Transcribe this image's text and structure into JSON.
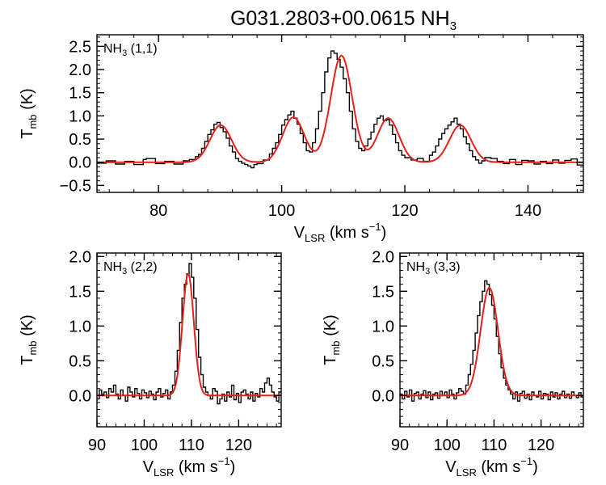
{
  "figure": {
    "title_main": "G031.2803+00.0615 NH",
    "title_sub": "3"
  },
  "chart_data": [
    {
      "type": "line",
      "panel": "NH3 (1,1)",
      "label_main": "NH",
      "label_sub": "3",
      "label_rest": " (1,1)",
      "xlabel_main": "V",
      "xlabel_sub": "LSR",
      "xlabel_rest": " (km s",
      "xlabel_sup": "−1",
      "xlabel_end": ")",
      "ylabel_main": "T",
      "ylabel_sub": "mb",
      "ylabel_rest": " (K)",
      "xlim": [
        70,
        149
      ],
      "ylim": [
        -0.65,
        2.75
      ],
      "xticks": [
        80,
        100,
        120,
        140
      ],
      "xtick_labels": [
        "80",
        "100",
        "120",
        "140"
      ],
      "yticks": [
        -0.5,
        0.0,
        0.5,
        1.0,
        1.5,
        2.0,
        2.5
      ],
      "ytick_labels": [
        "−0.5",
        "0.0",
        "0.5",
        "1.0",
        "1.5",
        "2.0",
        "2.5"
      ],
      "series": [
        {
          "name": "observed",
          "style": "step",
          "color": "#000000",
          "x": [
            70.0,
            71.5,
            73.0,
            74.5,
            76.0,
            77.5,
            78.0,
            79.5,
            81.0,
            82.5,
            84.0,
            85.0,
            86.0,
            86.5,
            87.0,
            87.5,
            88.0,
            88.5,
            89.0,
            89.5,
            90.0,
            90.5,
            91.0,
            91.5,
            92.0,
            92.5,
            93.0,
            93.5,
            94.0,
            94.5,
            95.0,
            95.5,
            96.0,
            97.0,
            98.0,
            98.5,
            99.0,
            99.5,
            100.0,
            100.5,
            101.0,
            101.5,
            102.0,
            102.5,
            103.0,
            103.5,
            104.0,
            104.5,
            105.0,
            105.5,
            106.0,
            106.5,
            107.0,
            107.5,
            108.0,
            108.5,
            109.0,
            109.5,
            110.0,
            110.5,
            111.0,
            111.5,
            112.0,
            112.5,
            113.0,
            113.5,
            114.0,
            114.5,
            115.0,
            115.5,
            116.0,
            116.5,
            117.0,
            117.5,
            118.0,
            118.5,
            119.0,
            119.5,
            120.0,
            121.0,
            122.0,
            123.0,
            124.0,
            124.5,
            125.0,
            125.5,
            126.0,
            126.5,
            127.0,
            127.5,
            128.0,
            128.5,
            129.0,
            129.5,
            130.0,
            130.5,
            131.0,
            131.5,
            132.0,
            132.5,
            133.0,
            134.0,
            135.0,
            136.0,
            137.0,
            138.0,
            139.0,
            140.0,
            141.0,
            142.0,
            143.0,
            144.0,
            145.0,
            146.0,
            147.0,
            148.0
          ],
          "y": [
            -0.02,
            0.03,
            -0.04,
            0.02,
            -0.05,
            0.06,
            0.08,
            -0.03,
            0.02,
            -0.04,
            0.03,
            0.06,
            0.12,
            0.17,
            0.3,
            0.45,
            0.6,
            0.7,
            0.82,
            0.86,
            0.75,
            0.66,
            0.52,
            0.35,
            0.22,
            0.08,
            0.02,
            -0.02,
            -0.05,
            -0.08,
            -0.12,
            -0.05,
            -0.03,
            0.05,
            0.18,
            0.3,
            0.42,
            0.6,
            0.8,
            0.92,
            1.02,
            1.1,
            0.95,
            0.82,
            0.62,
            0.42,
            0.25,
            0.22,
            0.42,
            0.72,
            1.1,
            1.5,
            1.95,
            2.25,
            2.4,
            2.35,
            2.22,
            2.05,
            1.8,
            1.5,
            1.1,
            0.72,
            0.45,
            0.3,
            0.25,
            0.35,
            0.5,
            0.65,
            0.82,
            0.95,
            1.0,
            0.9,
            0.92,
            0.8,
            0.6,
            0.42,
            0.25,
            0.15,
            0.1,
            0.05,
            0.08,
            0.02,
            0.15,
            0.22,
            0.35,
            0.5,
            0.62,
            0.72,
            0.8,
            0.87,
            0.95,
            0.82,
            0.72,
            0.55,
            0.4,
            0.25,
            0.12,
            0.05,
            -0.02,
            0.03,
            0.1,
            0.08,
            0.02,
            -0.03,
            0.06,
            -0.05,
            0.04,
            0.03,
            -0.04,
            0.02,
            -0.03,
            0.05,
            -0.02,
            0.04,
            0.07,
            -0.06
          ]
        },
        {
          "name": "fit",
          "style": "line",
          "color": "#e8201a",
          "components": [
            {
              "center": 90.1,
              "amp": 0.8,
              "sigma": 1.75
            },
            {
              "center": 101.9,
              "amp": 0.97,
              "sigma": 1.75
            },
            {
              "center": 109.7,
              "amp": 2.3,
              "sigma": 1.75
            },
            {
              "center": 117.3,
              "amp": 0.95,
              "sigma": 1.75
            },
            {
              "center": 129.0,
              "amp": 0.8,
              "sigma": 1.75
            }
          ]
        }
      ]
    },
    {
      "type": "line",
      "panel": "NH3 (2,2)",
      "label_main": "NH",
      "label_sub": "3",
      "label_rest": " (2,2)",
      "xlabel_main": "V",
      "xlabel_sub": "LSR",
      "xlabel_rest": " (km s",
      "xlabel_sup": "−1",
      "xlabel_end": ")",
      "ylabel_main": "T",
      "ylabel_sub": "mb",
      "ylabel_rest": " (K)",
      "xlim": [
        90,
        129
      ],
      "ylim": [
        -0.45,
        2.05
      ],
      "xticks": [
        90,
        100,
        110,
        120
      ],
      "xtick_labels": [
        "90",
        "100",
        "110",
        "120"
      ],
      "yticks": [
        0.0,
        0.5,
        1.0,
        1.5,
        2.0
      ],
      "ytick_labels": [
        "0.0",
        "0.5",
        "1.0",
        "1.5",
        "2.0"
      ],
      "series": [
        {
          "name": "observed",
          "style": "step",
          "color": "#000000",
          "x": [
            90.0,
            90.5,
            91.0,
            91.5,
            92.0,
            92.5,
            93.0,
            93.5,
            94.0,
            94.5,
            95.0,
            95.5,
            96.0,
            96.5,
            97.0,
            97.5,
            98.0,
            98.5,
            99.0,
            99.5,
            100.0,
            100.5,
            101.0,
            101.5,
            102.0,
            102.5,
            103.0,
            103.5,
            104.0,
            104.5,
            105.0,
            105.5,
            106.0,
            106.5,
            107.0,
            107.5,
            108.0,
            108.5,
            109.0,
            109.5,
            110.0,
            110.5,
            111.0,
            111.5,
            112.0,
            112.5,
            113.0,
            113.5,
            114.0,
            114.5,
            115.0,
            115.5,
            116.0,
            116.5,
            117.0,
            117.5,
            118.0,
            118.5,
            119.0,
            119.5,
            120.0,
            120.5,
            121.0,
            121.5,
            122.0,
            122.5,
            123.0,
            123.5,
            124.0,
            124.5,
            125.0,
            125.5,
            126.0,
            126.5,
            127.0,
            127.5,
            128.0,
            128.5
          ],
          "y": [
            -0.05,
            0.08,
            0.02,
            0.05,
            -0.03,
            0.1,
            0.05,
            0.15,
            0.02,
            -0.05,
            0.08,
            0.0,
            -0.08,
            0.12,
            0.05,
            -0.02,
            0.1,
            0.03,
            -0.05,
            0.08,
            0.04,
            -0.03,
            0.06,
            0.02,
            -0.06,
            0.05,
            0.1,
            -0.02,
            0.03,
            0.08,
            -0.05,
            0.05,
            0.15,
            0.35,
            0.65,
            1.05,
            1.4,
            1.6,
            1.75,
            1.9,
            1.7,
            1.4,
            0.95,
            0.55,
            0.3,
            0.12,
            0.05,
            0.0,
            -0.05,
            0.1,
            0.06,
            -0.12,
            -0.05,
            0.02,
            -0.08,
            0.05,
            -0.02,
            0.15,
            -0.06,
            0.03,
            -0.1,
            0.05,
            0.08,
            0.02,
            -0.05,
            0.05,
            -0.08,
            0.03,
            -0.02,
            0.1,
            0.05,
            0.18,
            0.25,
            0.15,
            0.05,
            -0.02,
            -0.08,
            0.05
          ]
        },
        {
          "name": "fit",
          "style": "line",
          "color": "#e8201a",
          "components": [
            {
              "center": 109.3,
              "amp": 1.75,
              "sigma": 1.2
            }
          ]
        }
      ]
    },
    {
      "type": "line",
      "panel": "NH3 (3,3)",
      "label_main": "NH",
      "label_sub": "3",
      "label_rest": " (3,3)",
      "xlabel_main": "V",
      "xlabel_sub": "LSR",
      "xlabel_rest": " (km s",
      "xlabel_sup": "−1",
      "xlabel_end": ")",
      "ylabel_main": "T",
      "ylabel_sub": "mb",
      "ylabel_rest": " (K)",
      "xlim": [
        90,
        129
      ],
      "ylim": [
        -0.45,
        2.05
      ],
      "xticks": [
        90,
        100,
        110,
        120
      ],
      "xtick_labels": [
        "90",
        "100",
        "110",
        "120"
      ],
      "yticks": [
        0.0,
        0.5,
        1.0,
        1.5,
        2.0
      ],
      "ytick_labels": [
        "0.0",
        "0.5",
        "1.0",
        "1.5",
        "2.0"
      ],
      "series": [
        {
          "name": "observed",
          "style": "step",
          "color": "#000000",
          "x": [
            90.0,
            90.5,
            91.0,
            91.5,
            92.0,
            92.5,
            93.0,
            93.5,
            94.0,
            94.5,
            95.0,
            95.5,
            96.0,
            96.5,
            97.0,
            97.5,
            98.0,
            98.5,
            99.0,
            99.5,
            100.0,
            100.5,
            101.0,
            101.5,
            102.0,
            102.5,
            103.0,
            103.5,
            104.0,
            104.5,
            105.0,
            105.5,
            106.0,
            106.5,
            107.0,
            107.5,
            108.0,
            108.5,
            109.0,
            109.5,
            110.0,
            110.5,
            111.0,
            111.5,
            112.0,
            112.5,
            113.0,
            113.5,
            114.0,
            114.5,
            115.0,
            115.5,
            116.0,
            116.5,
            117.0,
            117.5,
            118.0,
            118.5,
            119.0,
            119.5,
            120.0,
            120.5,
            121.0,
            121.5,
            122.0,
            122.5,
            123.0,
            123.5,
            124.0,
            124.5,
            125.0,
            125.5,
            126.0,
            126.5,
            127.0,
            127.5,
            128.0,
            128.5
          ],
          "y": [
            0.02,
            -0.05,
            0.06,
            -0.02,
            0.08,
            -0.08,
            0.03,
            0.05,
            -0.05,
            0.02,
            0.07,
            -0.03,
            0.05,
            -0.06,
            0.02,
            0.04,
            -0.04,
            0.06,
            0.0,
            0.05,
            -0.03,
            0.08,
            0.02,
            -0.05,
            0.04,
            0.1,
            0.06,
            0.02,
            0.15,
            0.3,
            0.45,
            0.65,
            0.9,
            1.15,
            1.35,
            1.5,
            1.65,
            1.6,
            1.45,
            1.3,
            1.1,
            0.85,
            0.6,
            0.4,
            0.25,
            0.15,
            0.08,
            0.02,
            -0.05,
            0.05,
            -0.08,
            0.03,
            0.06,
            -0.04,
            0.02,
            -0.06,
            0.05,
            0.0,
            -0.02,
            0.06,
            -0.05,
            0.03,
            0.02,
            -0.06,
            0.05,
            -0.02,
            0.04,
            -0.05,
            0.02,
            0.06,
            -0.03,
            0.02,
            -0.04,
            0.05,
            0.0,
            -0.03,
            0.04,
            -0.02
          ]
        },
        {
          "name": "fit",
          "style": "line",
          "color": "#e8201a",
          "components": [
            {
              "center": 109.0,
              "amp": 1.55,
              "sigma": 1.85
            }
          ]
        }
      ]
    }
  ]
}
